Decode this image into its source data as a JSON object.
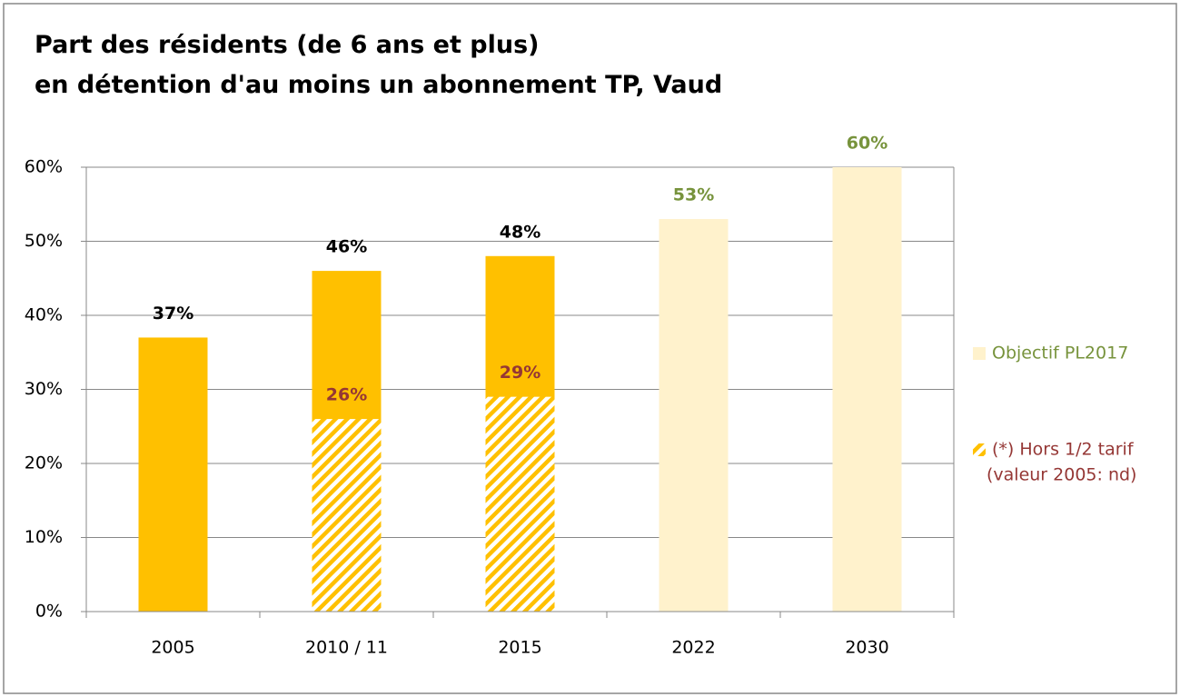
{
  "chart_data": {
    "type": "bar",
    "title": [
      "Part des résidents (de 6 ans et plus)",
      "en détention d'au moins un abonnement TP, Vaud"
    ],
    "categories": [
      "2005",
      "2010 / 11",
      "2015",
      "2022",
      "2030"
    ],
    "series": [
      {
        "color": "#ffc000",
        "label_color": "#000000",
        "values": [
          37,
          46,
          48,
          null,
          null
        ],
        "value_labels": [
          "37%",
          "46%",
          "48%",
          null,
          null
        ]
      },
      {
        "name": "Objectif PL2017",
        "color": "#fff2cc",
        "label_color": "#77933c",
        "values": [
          null,
          null,
          null,
          53,
          60
        ],
        "value_labels": [
          null,
          null,
          null,
          "53%",
          "60%"
        ]
      },
      {
        "name": "(*) Hors 1/2 tarif",
        "note": "(valeur 2005: nd)",
        "color": "#ffc000",
        "pattern": "hatch",
        "label_color": "#953735",
        "values": [
          null,
          26,
          29,
          null,
          null
        ],
        "value_labels": [
          null,
          "26%",
          "29%",
          null,
          null
        ]
      }
    ],
    "ylim": [
      0,
      60
    ],
    "yticks": [
      {
        "value": 0,
        "label": "0%"
      },
      {
        "value": 10,
        "label": "10%"
      },
      {
        "value": 20,
        "label": "20%"
      },
      {
        "value": 30,
        "label": "30%"
      },
      {
        "value": 40,
        "label": "40%"
      },
      {
        "value": 50,
        "label": "50%"
      },
      {
        "value": 60,
        "label": "60%"
      }
    ],
    "grid": true,
    "legend": "right"
  }
}
